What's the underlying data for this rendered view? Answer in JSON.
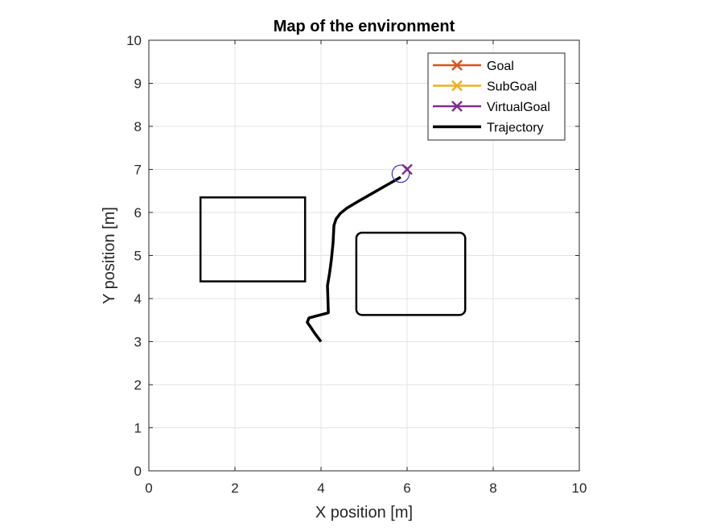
{
  "chart_data": {
    "type": "line",
    "title": "Map of the environment",
    "xlabel": "X position [m]",
    "ylabel": "Y position [m]",
    "xlim": [
      0,
      10
    ],
    "ylim": [
      0,
      10
    ],
    "xticks": [
      "0",
      "2",
      "4",
      "6",
      "8",
      "10"
    ],
    "yticks": [
      "0",
      "1",
      "2",
      "3",
      "4",
      "5",
      "6",
      "7",
      "8",
      "9",
      "10"
    ],
    "grid": true,
    "legend_position": "top-right",
    "legend": [
      {
        "name": "Goal",
        "color": "#D95319",
        "marker": "x"
      },
      {
        "name": "SubGoal",
        "color": "#EDB120",
        "marker": "x"
      },
      {
        "name": "VirtualGoal",
        "color": "#7E2F8E",
        "marker": "x"
      },
      {
        "name": "Trajectory",
        "color": "#000000",
        "marker": "none"
      }
    ],
    "series": [
      {
        "name": "Trajectory",
        "color": "#000000",
        "x": [
          4.0,
          3.85,
          3.75,
          3.68,
          3.72,
          3.9,
          4.17,
          4.15,
          4.2,
          4.24,
          4.28,
          4.3,
          4.35,
          4.45,
          4.6,
          4.85,
          5.2,
          5.55,
          5.85
        ],
        "y": [
          3.0,
          3.2,
          3.35,
          3.45,
          3.55,
          3.6,
          3.67,
          4.3,
          4.6,
          4.9,
          5.3,
          5.7,
          5.85,
          5.98,
          6.1,
          6.25,
          6.45,
          6.65,
          6.82
        ]
      },
      {
        "name": "VirtualGoal",
        "color": "#7E2F8E",
        "marker": "x",
        "x": [
          6.0
        ],
        "y": [
          7.0
        ]
      }
    ],
    "robot_marker": {
      "x": 5.85,
      "y": 6.9,
      "radius_m": 0.2,
      "color": "#3333CC"
    },
    "obstacles": [
      {
        "shape": "rectangle",
        "x_min": 1.2,
        "x_max": 3.63,
        "y_min": 4.4,
        "y_max": 6.35
      },
      {
        "shape": "rounded-rectangle",
        "x_min": 4.82,
        "x_max": 7.35,
        "y_min": 3.62,
        "y_max": 5.53
      }
    ]
  }
}
